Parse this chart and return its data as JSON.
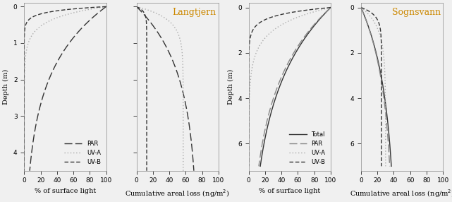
{
  "langtjern": {
    "title": "Langtjern",
    "depth_max": 4.5,
    "depth_ticks": [
      0,
      1,
      2,
      3,
      4
    ],
    "pct_ticks": [
      0,
      20,
      40,
      60,
      80,
      100
    ],
    "cum_ticks": [
      0,
      20,
      40,
      60,
      80,
      100
    ],
    "par_k": 0.6,
    "uva_k": 3.0,
    "uvb_k": 8.0,
    "par_cum_max": 70,
    "uva_cum_max": 57,
    "uvb_cum_max": 12.5
  },
  "sognsvann": {
    "title": "Sognsvann",
    "depth_max": 7.0,
    "depth_ticks": [
      0,
      2,
      4,
      6
    ],
    "pct_ticks": [
      0,
      20,
      40,
      60,
      80,
      100
    ],
    "cum_ticks": [
      0,
      20,
      40,
      60,
      80,
      100
    ],
    "total_k": 0.28,
    "par_k": 0.3,
    "uva_k": 1.2,
    "uvb_k": 3.0,
    "total_cum_max": 37,
    "par_cum_max": 35,
    "uva_cum_max": 30,
    "uvb_cum_max": 25
  },
  "bg_color": "#f0f0f0",
  "title_color": "#cc8800",
  "dark": "#333333",
  "gray": "#888888",
  "lgray": "#aaaaaa"
}
